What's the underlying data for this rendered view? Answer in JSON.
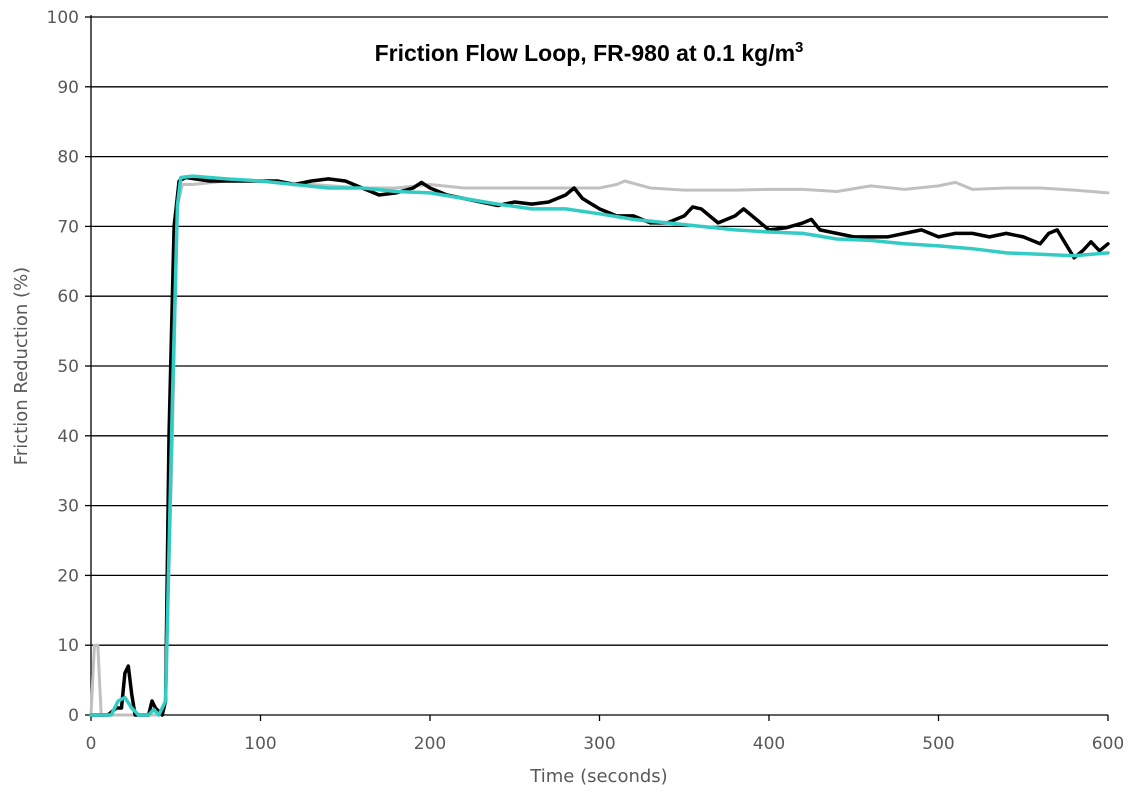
{
  "chart_data": {
    "type": "line",
    "title": "Friction Flow Loop, FR-980 at 0.1 kg/m",
    "title_superscript": "3",
    "xlabel": "Time (seconds)",
    "ylabel": "Friction Reduction (%)",
    "xlim": [
      0,
      600
    ],
    "ylim": [
      0,
      100
    ],
    "x_ticks": [
      0,
      100,
      200,
      300,
      400,
      500,
      600
    ],
    "y_ticks": [
      0,
      10,
      20,
      30,
      40,
      50,
      60,
      70,
      80,
      90,
      100
    ],
    "grid": "horizontal",
    "legend": "none",
    "series": [
      {
        "color": "#c0c0c0",
        "stroke_width": 3,
        "points": [
          [
            0,
            0
          ],
          [
            2,
            10
          ],
          [
            4,
            10
          ],
          [
            6,
            0
          ],
          [
            40,
            0
          ],
          [
            44,
            2
          ],
          [
            48,
            40
          ],
          [
            51,
            73
          ],
          [
            54,
            76
          ],
          [
            60,
            76
          ],
          [
            80,
            76.5
          ],
          [
            100,
            76.5
          ],
          [
            130,
            76
          ],
          [
            160,
            75.5
          ],
          [
            180,
            75.5
          ],
          [
            200,
            76
          ],
          [
            220,
            75.5
          ],
          [
            250,
            75.5
          ],
          [
            280,
            75.5
          ],
          [
            300,
            75.5
          ],
          [
            310,
            76
          ],
          [
            315,
            76.5
          ],
          [
            330,
            75.5
          ],
          [
            350,
            75.2
          ],
          [
            380,
            75.2
          ],
          [
            400,
            75.3
          ],
          [
            420,
            75.3
          ],
          [
            440,
            75
          ],
          [
            460,
            75.8
          ],
          [
            480,
            75.3
          ],
          [
            500,
            75.8
          ],
          [
            510,
            76.3
          ],
          [
            520,
            75.3
          ],
          [
            540,
            75.5
          ],
          [
            560,
            75.5
          ],
          [
            580,
            75.2
          ],
          [
            600,
            74.8
          ]
        ]
      },
      {
        "color": "#000000",
        "stroke_width": 3.5,
        "points": [
          [
            0,
            0
          ],
          [
            10,
            0
          ],
          [
            15,
            1
          ],
          [
            18,
            1
          ],
          [
            20,
            6
          ],
          [
            22,
            7
          ],
          [
            24,
            3
          ],
          [
            26,
            0
          ],
          [
            34,
            0
          ],
          [
            36,
            2
          ],
          [
            38,
            1
          ],
          [
            42,
            0
          ],
          [
            44,
            2
          ],
          [
            46,
            40
          ],
          [
            49,
            70
          ],
          [
            52,
            76.5
          ],
          [
            56,
            77
          ],
          [
            70,
            76.5
          ],
          [
            90,
            76.5
          ],
          [
            110,
            76.5
          ],
          [
            120,
            76
          ],
          [
            130,
            76.5
          ],
          [
            140,
            76.8
          ],
          [
            150,
            76.5
          ],
          [
            160,
            75.5
          ],
          [
            170,
            74.5
          ],
          [
            180,
            74.8
          ],
          [
            190,
            75.5
          ],
          [
            195,
            76.3
          ],
          [
            200,
            75.5
          ],
          [
            210,
            74.5
          ],
          [
            220,
            74
          ],
          [
            230,
            73.5
          ],
          [
            240,
            73
          ],
          [
            250,
            73.5
          ],
          [
            260,
            73.2
          ],
          [
            270,
            73.5
          ],
          [
            280,
            74.5
          ],
          [
            285,
            75.5
          ],
          [
            290,
            74
          ],
          [
            300,
            72.5
          ],
          [
            310,
            71.5
          ],
          [
            320,
            71.5
          ],
          [
            330,
            70.5
          ],
          [
            340,
            70.5
          ],
          [
            350,
            71.5
          ],
          [
            355,
            72.8
          ],
          [
            360,
            72.5
          ],
          [
            370,
            70.5
          ],
          [
            380,
            71.5
          ],
          [
            385,
            72.5
          ],
          [
            390,
            71.5
          ],
          [
            400,
            69.5
          ],
          [
            410,
            69.8
          ],
          [
            420,
            70.5
          ],
          [
            425,
            71
          ],
          [
            430,
            69.5
          ],
          [
            440,
            69
          ],
          [
            450,
            68.5
          ],
          [
            460,
            68.5
          ],
          [
            470,
            68.5
          ],
          [
            480,
            69
          ],
          [
            490,
            69.5
          ],
          [
            500,
            68.5
          ],
          [
            510,
            69
          ],
          [
            520,
            69
          ],
          [
            530,
            68.5
          ],
          [
            540,
            69
          ],
          [
            550,
            68.5
          ],
          [
            560,
            67.5
          ],
          [
            565,
            69
          ],
          [
            570,
            69.5
          ],
          [
            575,
            67.5
          ],
          [
            580,
            65.5
          ],
          [
            585,
            66.5
          ],
          [
            590,
            67.8
          ],
          [
            595,
            66.5
          ],
          [
            600,
            67.5
          ]
        ]
      },
      {
        "color": "#33ccc4",
        "stroke_width": 3.5,
        "points": [
          [
            0,
            0
          ],
          [
            12,
            0
          ],
          [
            16,
            2
          ],
          [
            20,
            2.5
          ],
          [
            24,
            1
          ],
          [
            28,
            0
          ],
          [
            34,
            0
          ],
          [
            37,
            0.8
          ],
          [
            40,
            0
          ],
          [
            44,
            2
          ],
          [
            48,
            45
          ],
          [
            51,
            73
          ],
          [
            53,
            77
          ],
          [
            60,
            77.2
          ],
          [
            80,
            76.8
          ],
          [
            100,
            76.5
          ],
          [
            120,
            76
          ],
          [
            140,
            75.5
          ],
          [
            160,
            75.5
          ],
          [
            180,
            75
          ],
          [
            200,
            74.8
          ],
          [
            220,
            74
          ],
          [
            240,
            73.2
          ],
          [
            260,
            72.5
          ],
          [
            280,
            72.5
          ],
          [
            300,
            71.8
          ],
          [
            320,
            71
          ],
          [
            340,
            70.5
          ],
          [
            360,
            70
          ],
          [
            380,
            69.5
          ],
          [
            400,
            69.2
          ],
          [
            420,
            69
          ],
          [
            440,
            68.2
          ],
          [
            460,
            68
          ],
          [
            480,
            67.5
          ],
          [
            500,
            67.2
          ],
          [
            520,
            66.8
          ],
          [
            540,
            66.2
          ],
          [
            560,
            66
          ],
          [
            580,
            65.8
          ],
          [
            600,
            66.2
          ]
        ]
      }
    ]
  }
}
